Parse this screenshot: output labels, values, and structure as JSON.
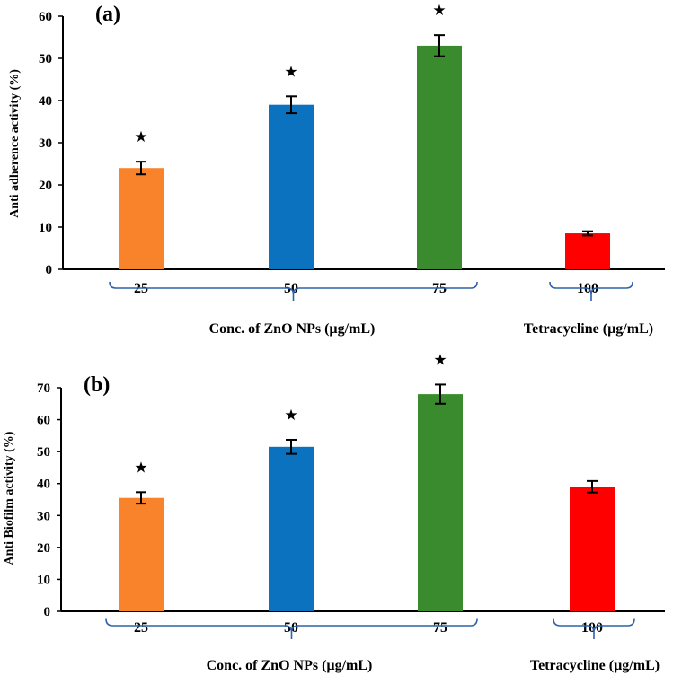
{
  "colors": {
    "bar_25": "#f8832a",
    "bar_50": "#0b72bf",
    "bar_75": "#3a8a2e",
    "bar_control": "#ff0000",
    "brace": "#2e62a8",
    "axis": "#000000"
  },
  "chart_data": [
    {
      "type": "bar",
      "panel_label": "(a)",
      "ylabel": "Anti adherence activity (%)",
      "ylim": [
        0,
        60
      ],
      "yticks": [
        0,
        10,
        20,
        30,
        40,
        50,
        60
      ],
      "categories": [
        "25",
        "50",
        "75",
        "100"
      ],
      "values": [
        24,
        39,
        53,
        8.5
      ],
      "errors": [
        1.5,
        2,
        2.5,
        0.5
      ],
      "significant": [
        true,
        true,
        true,
        false
      ],
      "star_symbol": "★",
      "groups": [
        {
          "label": "Conc. of ZnO NPs (µg/mL)",
          "categories": [
            "25",
            "50",
            "75"
          ]
        },
        {
          "label": "Tetracycline (µg/mL)",
          "categories": [
            "100"
          ]
        }
      ]
    },
    {
      "type": "bar",
      "panel_label": "(b)",
      "ylabel": "Anti Biofilm activity (%)",
      "ylim": [
        0,
        70
      ],
      "yticks": [
        0,
        10,
        20,
        30,
        40,
        50,
        60,
        70
      ],
      "categories": [
        "25",
        "50",
        "75",
        "100"
      ],
      "values": [
        35.5,
        51.5,
        68,
        39
      ],
      "errors": [
        1.8,
        2.2,
        3,
        1.8
      ],
      "significant": [
        true,
        true,
        true,
        false
      ],
      "star_symbol": "★",
      "groups": [
        {
          "label": "Conc. of ZnO NPs (µg/mL)",
          "categories": [
            "25",
            "50",
            "75"
          ]
        },
        {
          "label": "Tetracycline (µg/mL)",
          "categories": [
            "100"
          ]
        }
      ]
    }
  ]
}
